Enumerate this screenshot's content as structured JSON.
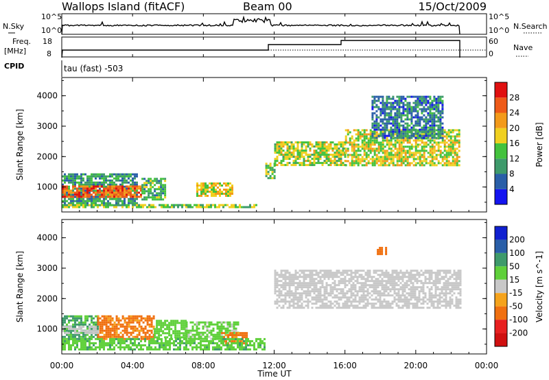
{
  "header": {
    "station": "Wallops Island (fitACF)",
    "beam": "Beam 00",
    "date": "15/Oct/2009"
  },
  "strip": {
    "nsky_label": "N.Sky",
    "nsearch_label": "N.Search",
    "exp_top": "10^5",
    "exp_bottom": "10^0",
    "freq_label": "Freq.",
    "freq_unit": "[MHz]",
    "freq_ticks": [
      "18",
      "8"
    ],
    "nave_label": "Nave",
    "nave_ticks": [
      "60",
      "0"
    ],
    "cpid_label": "CPID",
    "cpid_text": "tau (fast) -503"
  },
  "time_axis": {
    "title": "Time UT",
    "ticks": [
      "00:00",
      "04:00",
      "08:00",
      "12:00",
      "16:00",
      "20:00",
      "00:00"
    ]
  },
  "panels": {
    "power": {
      "ylabel": "Slant Range [km]",
      "cbar_label": "Power [dB]"
    },
    "velocity": {
      "ylabel": "Slant Range [km]",
      "cbar_label": "Velocity [m s^-1]"
    }
  },
  "chart_data": [
    {
      "type": "heatmap",
      "name": "power",
      "x_unit": "hours UT",
      "ylabel": "Slant Range [km]",
      "xlim": [
        0,
        24
      ],
      "ylim": [
        180,
        4600
      ],
      "yticks": [
        1000,
        2000,
        3000,
        4000
      ],
      "colorbar": {
        "label": "Power [dB]",
        "ticks": [
          4,
          8,
          12,
          16,
          20,
          24,
          28
        ],
        "range": [
          0,
          32
        ],
        "colors": [
          "#1414f0",
          "#2a5fa8",
          "#3e9a6b",
          "#43c23d",
          "#f0d020",
          "#f39a1a",
          "#ee5a18",
          "#e01010"
        ]
      },
      "regions": [
        {
          "t0": 0.0,
          "t1": 4.2,
          "r0": 400,
          "r1": 1450,
          "level": 10
        },
        {
          "t0": 0.0,
          "t1": 4.5,
          "r0": 700,
          "r1": 1050,
          "level": 26
        },
        {
          "t0": 4.5,
          "t1": 5.8,
          "r0": 600,
          "r1": 1300,
          "level": 12
        },
        {
          "t0": 7.6,
          "t1": 9.6,
          "r0": 700,
          "r1": 1150,
          "level": 18
        },
        {
          "t0": 0.0,
          "t1": 11.0,
          "r0": 320,
          "r1": 440,
          "level": 14
        },
        {
          "t0": 11.5,
          "t1": 12.0,
          "r0": 1300,
          "r1": 1800,
          "level": 14
        },
        {
          "t0": 12.0,
          "t1": 16.0,
          "r0": 1700,
          "r1": 2500,
          "level": 16
        },
        {
          "t0": 16.0,
          "t1": 22.5,
          "r0": 1700,
          "r1": 2900,
          "level": 17
        },
        {
          "t0": 17.5,
          "t1": 21.5,
          "r0": 2600,
          "r1": 4000,
          "level": 8
        }
      ]
    },
    {
      "type": "heatmap",
      "name": "velocity",
      "x_unit": "hours UT",
      "ylabel": "Slant Range [km]",
      "xlim": [
        0,
        24
      ],
      "ylim": [
        180,
        4600
      ],
      "yticks": [
        1000,
        2000,
        3000,
        4000
      ],
      "colorbar": {
        "label": "Velocity [m s^-1]",
        "ticks": [
          200,
          100,
          50,
          15,
          -15,
          -50,
          -100,
          -200
        ],
        "colors": [
          "#1020d0",
          "#2a5fa8",
          "#3e9a6b",
          "#5fd03a",
          "#c8c8c8",
          "#f5a31c",
          "#f07010",
          "#e82020",
          "#d01010"
        ]
      },
      "regions": [
        {
          "t0": 0.0,
          "t1": 2.0,
          "r0": 700,
          "r1": 1450,
          "v": 60
        },
        {
          "t0": 0.0,
          "t1": 2.0,
          "r0": 850,
          "r1": 1100,
          "v": 0
        },
        {
          "t0": 2.0,
          "t1": 5.2,
          "r0": 700,
          "r1": 1450,
          "v": -60
        },
        {
          "t0": 5.2,
          "t1": 7.0,
          "r0": 700,
          "r1": 1300,
          "v": 30
        },
        {
          "t0": 7.0,
          "t1": 10.0,
          "r0": 700,
          "r1": 1250,
          "v": 25
        },
        {
          "t0": 9.0,
          "t1": 10.5,
          "r0": 500,
          "r1": 900,
          "v": -60
        },
        {
          "t0": 0.0,
          "t1": 11.5,
          "r0": 300,
          "r1": 700,
          "v": 40
        },
        {
          "t0": 12.0,
          "t1": 22.5,
          "r0": 1700,
          "r1": 2950,
          "v": 0
        },
        {
          "t0": 17.8,
          "t1": 18.3,
          "r0": 3450,
          "r1": 3700,
          "v": -80
        }
      ]
    }
  ]
}
